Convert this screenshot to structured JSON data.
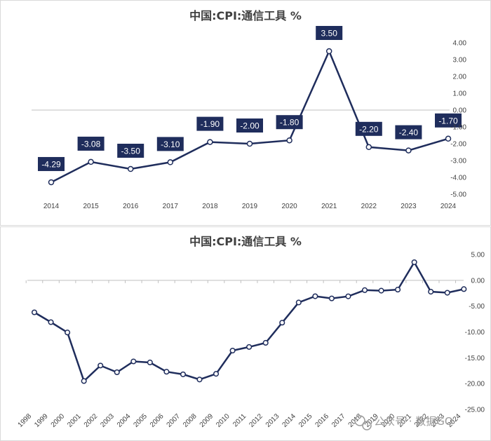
{
  "chart_data": [
    {
      "type": "line",
      "title": "中国:CPI:通信工具 %",
      "x": [
        "2014",
        "2015",
        "2016",
        "2017",
        "2018",
        "2019",
        "2020",
        "2021",
        "2022",
        "2023",
        "2024"
      ],
      "values": [
        -4.29,
        -3.08,
        -3.5,
        -3.1,
        -1.9,
        -2.0,
        -1.8,
        3.5,
        -2.2,
        -2.4,
        -1.7
      ],
      "data_labels": [
        "-4.29",
        "-3.08",
        "-3.50",
        "-3.10",
        "-1.90",
        "-2.00",
        "-1.80",
        "3.50",
        "-2.20",
        "-2.40",
        "-1.70"
      ],
      "ylim": [
        -5,
        4
      ],
      "yticks": [
        -5,
        -4,
        -3,
        -2,
        -1,
        0,
        1,
        2,
        3,
        4
      ],
      "ytick_labels": [
        "-5.00",
        "-4.00",
        "-3.00",
        "-2.00",
        "-1.00",
        "0.00",
        "1.00",
        "2.00",
        "3.00",
        "4.00"
      ],
      "line_color": "#1f2d5c",
      "label_bg": "#1f2d5c",
      "grid": false,
      "xlabel": "",
      "ylabel": ""
    },
    {
      "type": "line",
      "title": "中国:CPI:通信工具 %",
      "x": [
        "1998",
        "1999",
        "2000",
        "2001",
        "2002",
        "2003",
        "2004",
        "2005",
        "2006",
        "2007",
        "2008",
        "2009",
        "2010",
        "2011",
        "2012",
        "2013",
        "2014",
        "2015",
        "2016",
        "2017",
        "2018",
        "2019",
        "2020",
        "2021",
        "2022",
        "2023",
        "2024"
      ],
      "values": [
        -6.2,
        -8.1,
        -10.1,
        -19.5,
        -16.5,
        -17.8,
        -15.7,
        -15.9,
        -17.7,
        -18.2,
        -19.2,
        -18.1,
        -13.6,
        -12.9,
        -12.1,
        -8.2,
        -4.29,
        -3.08,
        -3.5,
        -3.1,
        -1.9,
        -2.0,
        -1.8,
        3.5,
        -2.2,
        -2.4,
        -1.7
      ],
      "ylim": [
        -25,
        5
      ],
      "yticks": [
        -25,
        -20,
        -15,
        -10,
        -5,
        0,
        5
      ],
      "ytick_labels": [
        "-25.00",
        "-20.00",
        "-15.00",
        "-10.00",
        "-5.00",
        "0.00",
        "5.00"
      ],
      "line_color": "#1f2d5c",
      "grid": false,
      "xlabel": "",
      "ylabel": ""
    }
  ],
  "watermark": {
    "text": "公众号 · 数据GO"
  }
}
